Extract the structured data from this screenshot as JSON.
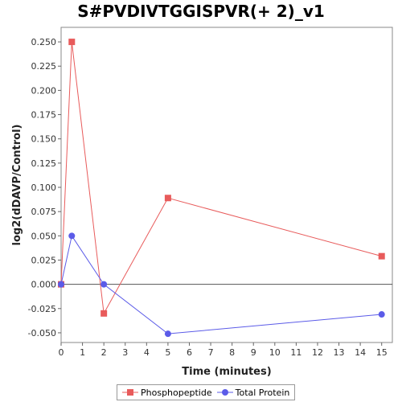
{
  "chart_data": {
    "type": "line",
    "title": "S#PVDIVTGGISPVR(+ 2)_v1",
    "xlabel": "Time (minutes)",
    "ylabel": "log2(dDAVP/Control)",
    "xlim": [
      0,
      15.5
    ],
    "ylim": [
      -0.06,
      0.265
    ],
    "x_ticks": [
      0,
      1,
      2,
      3,
      4,
      5,
      6,
      7,
      8,
      9,
      10,
      11,
      12,
      13,
      14,
      15
    ],
    "y_ticks": [
      -0.05,
      -0.025,
      0.0,
      0.025,
      0.05,
      0.075,
      0.1,
      0.125,
      0.15,
      0.175,
      0.2,
      0.225,
      0.25
    ],
    "y_tick_labels": [
      "-0.050",
      "-0.025",
      "0.000",
      "0.025",
      "0.050",
      "0.075",
      "0.100",
      "0.125",
      "0.150",
      "0.175",
      "0.200",
      "0.225",
      "0.250"
    ],
    "grid": false,
    "zero_line": true,
    "legend_position": "bottom",
    "series": [
      {
        "name": "Phosphopeptide",
        "color": "#e85b5b",
        "marker": "square",
        "x": [
          0,
          0.5,
          2,
          5,
          15
        ],
        "y": [
          0.0,
          0.25,
          -0.03,
          0.089,
          0.029
        ]
      },
      {
        "name": "Total Protein",
        "color": "#5b5be8",
        "marker": "circle",
        "x": [
          0,
          0.5,
          2,
          5,
          15
        ],
        "y": [
          0.0,
          0.05,
          0.0,
          -0.051,
          -0.031
        ]
      }
    ]
  }
}
